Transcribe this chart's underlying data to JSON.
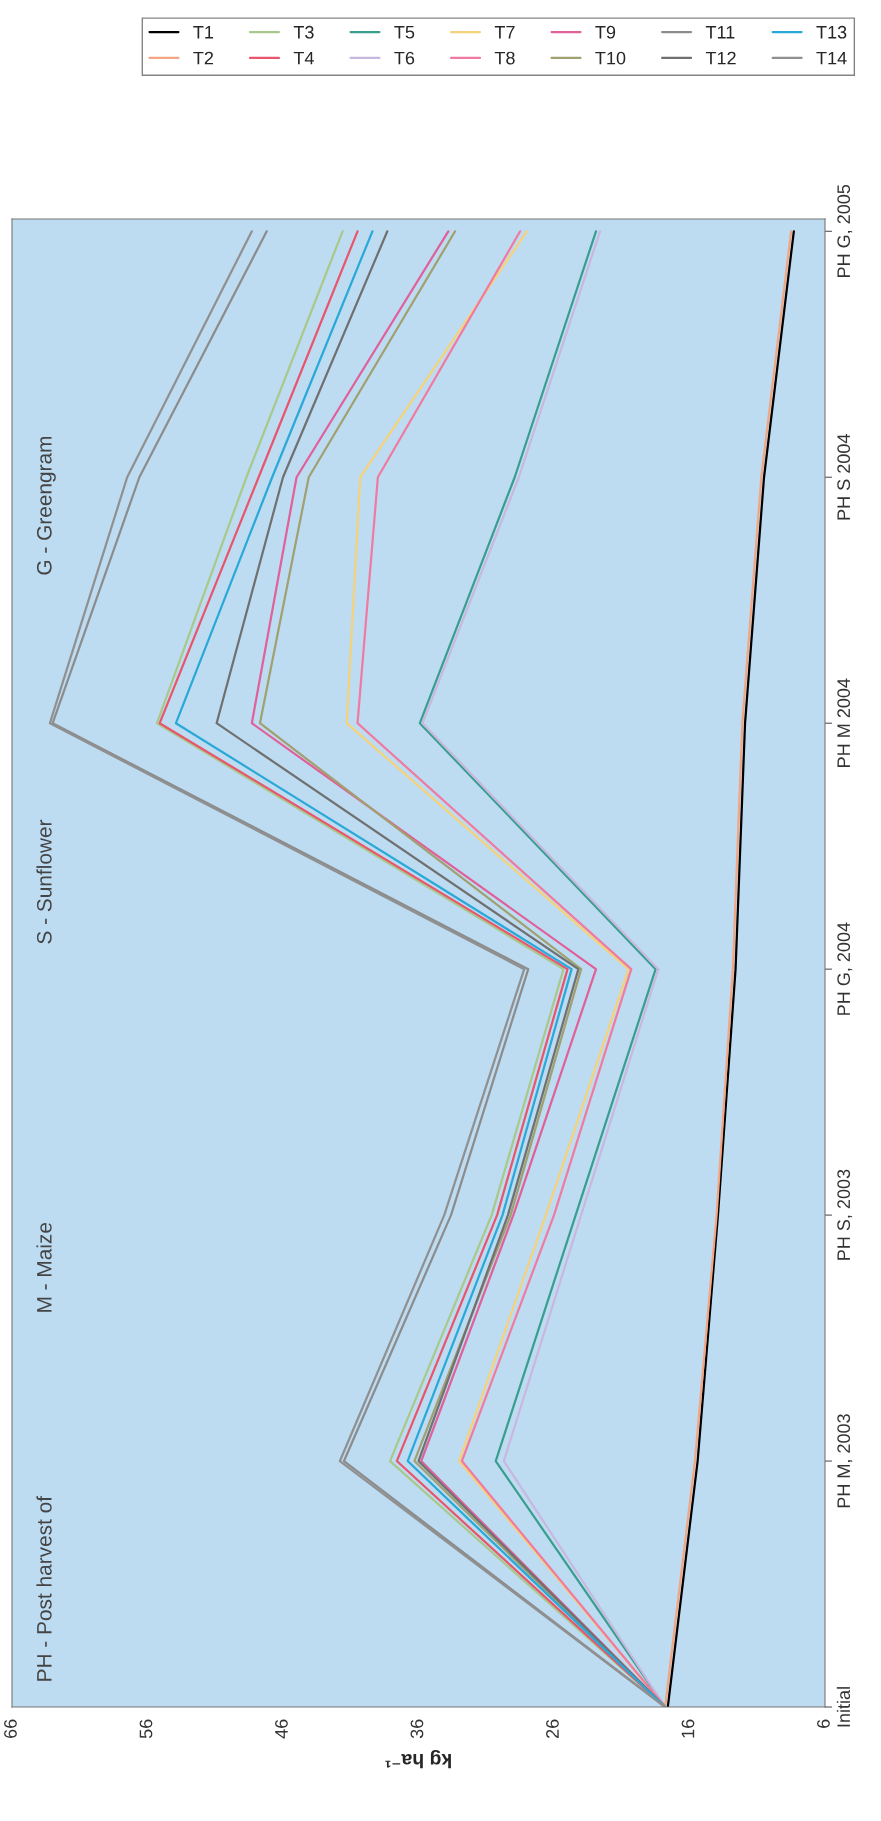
{
  "chart_data": {
    "type": "line",
    "orientation": "horizontal",
    "categories": [
      "PH G, 2005",
      "PH S 2004",
      "PH M 2004",
      "PH G, 2004",
      "PH S, 2003",
      "PH M, 2003",
      "Initial"
    ],
    "xlabel": "kg ha⁻¹",
    "xlim": [
      66,
      6
    ],
    "xticks": [
      6,
      16,
      26,
      36,
      46,
      56,
      66
    ],
    "annotations": [
      "PH - Post harvest of",
      "M - Maize",
      "S - Sunflower",
      "G - Greengram"
    ],
    "legend": "top right",
    "line_style": "solid",
    "series": [
      {
        "name": "T1",
        "color": "#000000",
        "values": [
          8.3,
          10.5,
          11.9,
          12.6,
          13.9,
          15.4,
          17.6
        ]
      },
      {
        "name": "T2",
        "color": "#f4a582",
        "values": [
          8.5,
          10.7,
          12.1,
          12.8,
          14.0,
          15.6,
          17.8
        ]
      },
      {
        "name": "T3",
        "color": "#a8c98a",
        "values": [
          41.6,
          48.7,
          55.3,
          25.3,
          30.6,
          38.1,
          17.8
        ]
      },
      {
        "name": "T4",
        "color": "#e8556d",
        "values": [
          40.5,
          47.8,
          55.1,
          25.0,
          30.2,
          37.6,
          17.8
        ]
      },
      {
        "name": "T5",
        "color": "#3a9e8f",
        "values": [
          22.9,
          28.9,
          35.9,
          18.5,
          24.4,
          30.3,
          17.8
        ]
      },
      {
        "name": "T6",
        "color": "#c8b8e0",
        "values": [
          22.6,
          28.6,
          35.7,
          18.3,
          24.0,
          29.7,
          17.8
        ]
      },
      {
        "name": "T7",
        "color": "#f5d27a",
        "values": [
          28.0,
          40.3,
          41.3,
          20.5,
          26.6,
          33.0,
          17.8
        ]
      },
      {
        "name": "T8",
        "color": "#f07aa0",
        "values": [
          28.5,
          39.0,
          40.5,
          20.3,
          26.0,
          32.8,
          17.8
        ]
      },
      {
        "name": "T9",
        "color": "#e0609a",
        "values": [
          33.8,
          45.0,
          48.3,
          22.9,
          29.0,
          35.8,
          17.8
        ]
      },
      {
        "name": "T10",
        "color": "#a0a070",
        "values": [
          33.3,
          44.1,
          47.7,
          24.0,
          29.2,
          36.3,
          17.8
        ]
      },
      {
        "name": "T11",
        "color": "#8c8c8c",
        "values": [
          47.2,
          56.6,
          63.0,
          27.9,
          33.6,
          41.5,
          17.8
        ]
      },
      {
        "name": "T12",
        "color": "#707070",
        "values": [
          38.3,
          46.0,
          50.9,
          24.2,
          29.4,
          36.0,
          17.8
        ]
      },
      {
        "name": "T13",
        "color": "#2aa8d8",
        "values": [
          39.4,
          46.8,
          53.9,
          24.7,
          29.8,
          36.8,
          17.8
        ]
      },
      {
        "name": "T14",
        "color": "#909090",
        "values": [
          48.3,
          57.5,
          63.2,
          28.2,
          34.1,
          41.8,
          17.8
        ]
      }
    ]
  }
}
